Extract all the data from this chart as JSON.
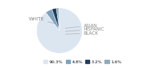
{
  "labels": [
    "WHITE",
    "ASIAN",
    "HISPANIC",
    "BLACK"
  ],
  "values": [
    90.3,
    4.8,
    3.2,
    1.6
  ],
  "colors": [
    "#dce6f1",
    "#7ba3c0",
    "#1f3e5a",
    "#8faabd"
  ],
  "legend_labels": [
    "90.3%",
    "4.8%",
    "3.2%",
    "1.6%"
  ],
  "startangle": 92,
  "bg_color": "#ffffff",
  "text_color": "#888888"
}
